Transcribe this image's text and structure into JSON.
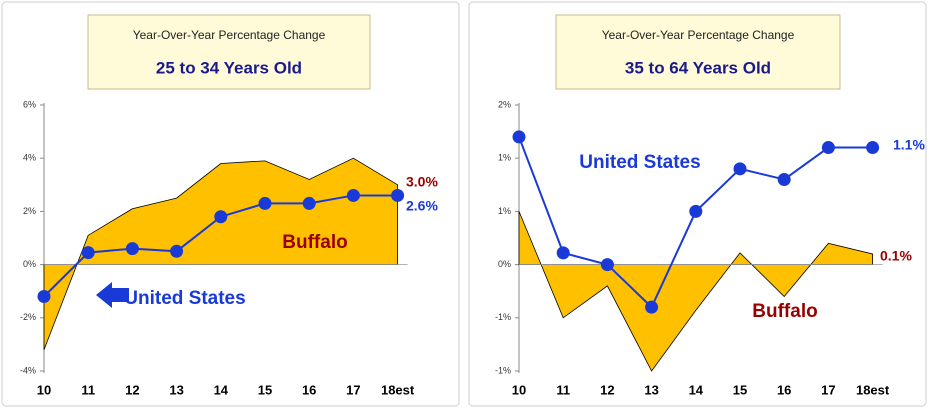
{
  "chart_data": [
    {
      "type": "line",
      "subtitle": "Year-Over-Year Percentage Change",
      "title": "25 to 34 Years Old",
      "categories": [
        "10",
        "11",
        "12",
        "13",
        "14",
        "15",
        "16",
        "17",
        "18est"
      ],
      "ylim": [
        -4,
        6
      ],
      "yticks": [
        {
          "value": -4,
          "label": "-4%"
        },
        {
          "value": -2,
          "label": "-2%"
        },
        {
          "value": 0,
          "label": "0%"
        },
        {
          "value": 2,
          "label": "2%"
        },
        {
          "value": 4,
          "label": "4%"
        },
        {
          "value": 6,
          "label": "6%"
        }
      ],
      "series": [
        {
          "name": "Buffalo",
          "color": "#ffc000",
          "area": true,
          "values": [
            -3.2,
            1.1,
            2.1,
            2.5,
            3.8,
            3.9,
            3.2,
            4.0,
            3.0
          ],
          "end_label": "3.0%",
          "label_color": "#990000"
        },
        {
          "name": "United States",
          "color": "#1a3ad8",
          "area": false,
          "values": [
            -1.2,
            0.45,
            0.6,
            0.5,
            1.8,
            2.3,
            2.3,
            2.6,
            2.6
          ],
          "end_label": "2.6%",
          "label_color": "#1a3ad8"
        }
      ]
    },
    {
      "type": "line",
      "subtitle": "Year-Over-Year Percentage Change",
      "title": "35 to 64 Years Old",
      "categories": [
        "10",
        "11",
        "12",
        "13",
        "14",
        "15",
        "16",
        "17",
        "18est"
      ],
      "ylim": [
        -1,
        1.5
      ],
      "yticks": [
        {
          "value": -1,
          "label": "-1%"
        },
        {
          "value": -0.5,
          "label": "-1%"
        },
        {
          "value": 0,
          "label": "0%"
        },
        {
          "value": 0.5,
          "label": "1%"
        },
        {
          "value": 1,
          "label": "1%"
        },
        {
          "value": 1.5,
          "label": "2%"
        }
      ],
      "series": [
        {
          "name": "Buffalo",
          "color": "#ffc000",
          "area": true,
          "values": [
            0.5,
            -0.5,
            -0.2,
            -1.0,
            -0.43,
            0.11,
            -0.3,
            0.2,
            0.1
          ],
          "end_label": "0.1%",
          "label_color": "#990000"
        },
        {
          "name": "United States",
          "color": "#1a3ad8",
          "area": false,
          "values": [
            1.2,
            0.11,
            0.0,
            -0.4,
            0.5,
            0.9,
            0.8,
            1.1,
            1.1
          ],
          "end_label": "1.1%",
          "label_color": "#1a3ad8"
        }
      ]
    }
  ]
}
